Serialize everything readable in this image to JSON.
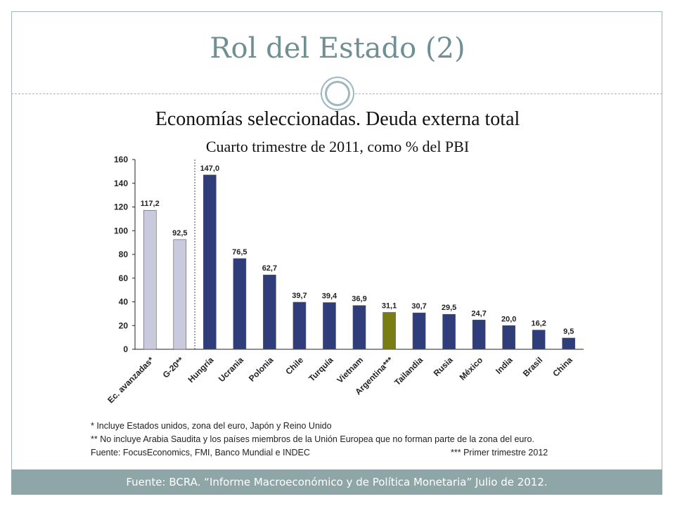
{
  "slide": {
    "title": "Rol del Estado (2)",
    "footer": "Fuente: BCRA. “Informe Macroeconómico y de Política Monetaria” Julio de 2012."
  },
  "notes": {
    "note1": "* Incluye Estados unidos, zona del euro, Japón y Reino Unido",
    "note2": "** No incluye Arabia Saudita y los países miembros de la Unión Europea que no forman parte de la zona del euro.",
    "source": "Fuente: FocusEconomics, FMI, Banco Mundial e INDEC",
    "note3": "*** Primer trimestre 2012"
  },
  "colors": {
    "accent": "#6f8f92",
    "bar_aggregate": "#c9cade",
    "bar_country": "#2f3d7a",
    "bar_argentina": "#7a7d12"
  },
  "chart_data": {
    "type": "bar",
    "title": "Economías seleccionadas. Deuda externa total",
    "subtitle": "Cuarto trimestre de 2011, como % del PBI",
    "categories": [
      "Ec. avanzadas*",
      "G-20**",
      "Hungría",
      "Ucrania",
      "Polonia",
      "Chile",
      "Turquía",
      "Vietnam",
      "Argentina***",
      "Tailandia",
      "Rusia",
      "México",
      "India",
      "Brasil",
      "China"
    ],
    "values": [
      117.2,
      92.5,
      147.0,
      76.5,
      62.7,
      39.7,
      39.4,
      36.9,
      31.1,
      30.7,
      29.5,
      24.7,
      20.0,
      16.2,
      9.5
    ],
    "value_labels": [
      "117,2",
      "92,5",
      "147,0",
      "76,5",
      "62,7",
      "39,7",
      "39,4",
      "36,9",
      "31,1",
      "30,7",
      "29,5",
      "24,7",
      "20,0",
      "16,2",
      "9,5"
    ],
    "bar_groups": [
      "aggregate",
      "aggregate",
      "country",
      "country",
      "country",
      "country",
      "country",
      "country",
      "argentina",
      "country",
      "country",
      "country",
      "country",
      "country",
      "country"
    ],
    "ylim": [
      0,
      160
    ],
    "yticks": [
      0,
      20,
      40,
      60,
      80,
      100,
      120,
      140,
      160
    ],
    "grid": false,
    "separator_after_index": 1
  }
}
